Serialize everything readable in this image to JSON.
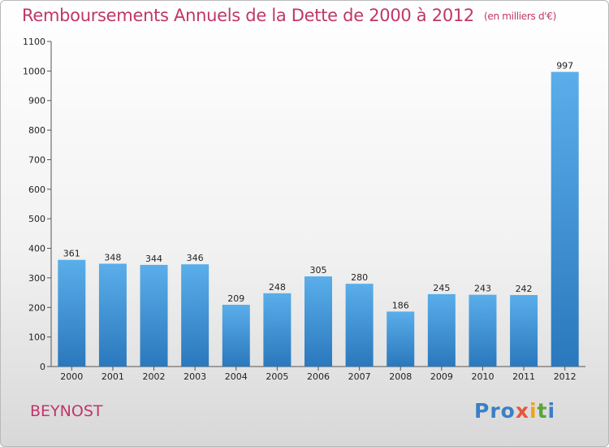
{
  "chart_data": {
    "type": "bar",
    "title": "Remboursements Annuels de la Dette de 2000 à 2012",
    "subtitle": "(en milliers d'€)",
    "categories": [
      "2000",
      "2001",
      "2002",
      "2003",
      "2004",
      "2005",
      "2006",
      "2007",
      "2008",
      "2009",
      "2010",
      "2011",
      "2012"
    ],
    "values": [
      361,
      348,
      344,
      346,
      209,
      248,
      305,
      280,
      186,
      245,
      243,
      242,
      997
    ],
    "yticks": [
      0,
      100,
      200,
      300,
      400,
      500,
      600,
      700,
      800,
      900,
      1000,
      1100
    ],
    "ylim": [
      0,
      1100
    ],
    "xlabel": "",
    "ylabel": "",
    "grid": false,
    "bar_color": "#3f8fd6"
  },
  "place_name": "BEYNOST",
  "logo": {
    "p1": "Pro",
    "p2": "x",
    "p3": "i",
    "p4": "t",
    "p5": "i"
  }
}
